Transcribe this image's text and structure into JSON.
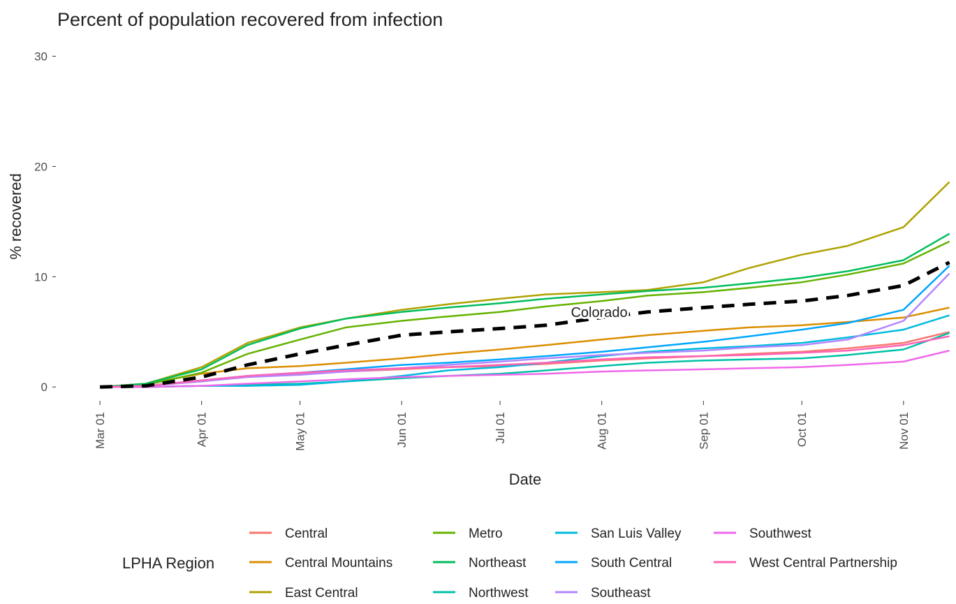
{
  "chart_data": {
    "type": "line",
    "title": "Percent of population recovered from infection",
    "x_label": "Date",
    "y_label": "% recovered",
    "legend_title": "LPHA Region",
    "legend_position": "bottom",
    "x": [
      "Mar 01",
      "Mar 15",
      "Apr 01",
      "Apr 15",
      "May 01",
      "May 15",
      "Jun 01",
      "Jun 15",
      "Jul 01",
      "Jul 15",
      "Aug 01",
      "Aug 15",
      "Sep 01",
      "Sep 15",
      "Oct 01",
      "Oct 15",
      "Nov 01",
      "Nov 15"
    ],
    "xlim": [
      "Feb 17",
      "Nov 17"
    ],
    "xticks": [
      "Mar 01",
      "Apr 01",
      "May 01",
      "Jun 01",
      "Jul 01",
      "Aug 01",
      "Sep 01",
      "Oct 01",
      "Nov 01"
    ],
    "ylim": [
      -1,
      31.3
    ],
    "yticks": [
      0,
      10,
      20,
      30
    ],
    "grid": false,
    "series": [
      {
        "name": "Central",
        "color": "#F8766D",
        "values": [
          0,
          0.1,
          0.5,
          1.0,
          1.2,
          1.4,
          1.6,
          1.8,
          1.9,
          2.1,
          2.4,
          2.6,
          2.8,
          3.0,
          3.2,
          3.5,
          4.0,
          5.0
        ]
      },
      {
        "name": "Central Mountains",
        "color": "#DB8E00",
        "values": [
          0,
          0.3,
          1.2,
          1.7,
          1.9,
          2.2,
          2.6,
          3.0,
          3.4,
          3.8,
          4.3,
          4.7,
          5.1,
          5.4,
          5.6,
          5.9,
          6.3,
          7.2
        ]
      },
      {
        "name": "East Central",
        "color": "#AEA200",
        "values": [
          0,
          0.3,
          1.8,
          4.0,
          5.4,
          6.2,
          7.0,
          7.5,
          8.0,
          8.4,
          8.6,
          8.8,
          9.5,
          10.8,
          12.0,
          12.8,
          14.5,
          18.6
        ]
      },
      {
        "name": "Metro",
        "color": "#64B200",
        "values": [
          0,
          0.2,
          1.3,
          3.0,
          4.3,
          5.4,
          6.0,
          6.4,
          6.8,
          7.3,
          7.8,
          8.3,
          8.6,
          9.0,
          9.5,
          10.2,
          11.2,
          13.2
        ]
      },
      {
        "name": "Northeast",
        "color": "#00BD5C",
        "values": [
          0,
          0.3,
          1.6,
          3.8,
          5.3,
          6.2,
          6.8,
          7.2,
          7.6,
          8.0,
          8.4,
          8.7,
          9.0,
          9.4,
          9.9,
          10.5,
          11.5,
          13.9
        ]
      },
      {
        "name": "Northwest",
        "color": "#00C1A7",
        "values": [
          0,
          0,
          0.1,
          0.2,
          0.3,
          0.5,
          0.8,
          1.0,
          1.2,
          1.5,
          1.9,
          2.2,
          2.4,
          2.5,
          2.6,
          2.9,
          3.4,
          4.9
        ]
      },
      {
        "name": "San Luis Valley",
        "color": "#00BADE",
        "values": [
          0,
          0,
          0.1,
          0.1,
          0.2,
          0.5,
          1.0,
          1.5,
          1.8,
          2.2,
          2.8,
          3.2,
          3.5,
          3.7,
          4.0,
          4.5,
          5.2,
          6.5
        ]
      },
      {
        "name": "South Central",
        "color": "#00A6FF",
        "values": [
          0,
          0.1,
          0.6,
          1.0,
          1.3,
          1.6,
          2.0,
          2.2,
          2.5,
          2.8,
          3.2,
          3.6,
          4.1,
          4.6,
          5.2,
          5.8,
          7.0,
          11.0
        ]
      },
      {
        "name": "Southeast",
        "color": "#B385FF",
        "values": [
          0,
          0.1,
          0.5,
          0.9,
          1.1,
          1.4,
          1.7,
          2.0,
          2.3,
          2.6,
          2.9,
          3.1,
          3.3,
          3.6,
          3.8,
          4.3,
          6.0,
          10.3
        ]
      },
      {
        "name": "Southwest",
        "color": "#EF67EB",
        "values": [
          0,
          0,
          0.1,
          0.3,
          0.5,
          0.7,
          0.9,
          1.0,
          1.1,
          1.2,
          1.4,
          1.5,
          1.6,
          1.7,
          1.8,
          2.0,
          2.3,
          3.3
        ]
      },
      {
        "name": "West Central Partnership",
        "color": "#FF63B6",
        "values": [
          0,
          0.1,
          0.6,
          1.0,
          1.3,
          1.5,
          1.7,
          1.8,
          2.0,
          2.2,
          2.5,
          2.7,
          2.8,
          2.9,
          3.1,
          3.3,
          3.8,
          4.6
        ]
      }
    ],
    "reference": {
      "label": "Colorado",
      "color": "#000000",
      "dashed": true,
      "values": [
        0,
        0.1,
        0.9,
        2.0,
        3.0,
        3.8,
        4.7,
        5.0,
        5.3,
        5.6,
        6.3,
        6.8,
        7.2,
        7.5,
        7.8,
        8.3,
        9.2,
        11.3
      ]
    }
  }
}
